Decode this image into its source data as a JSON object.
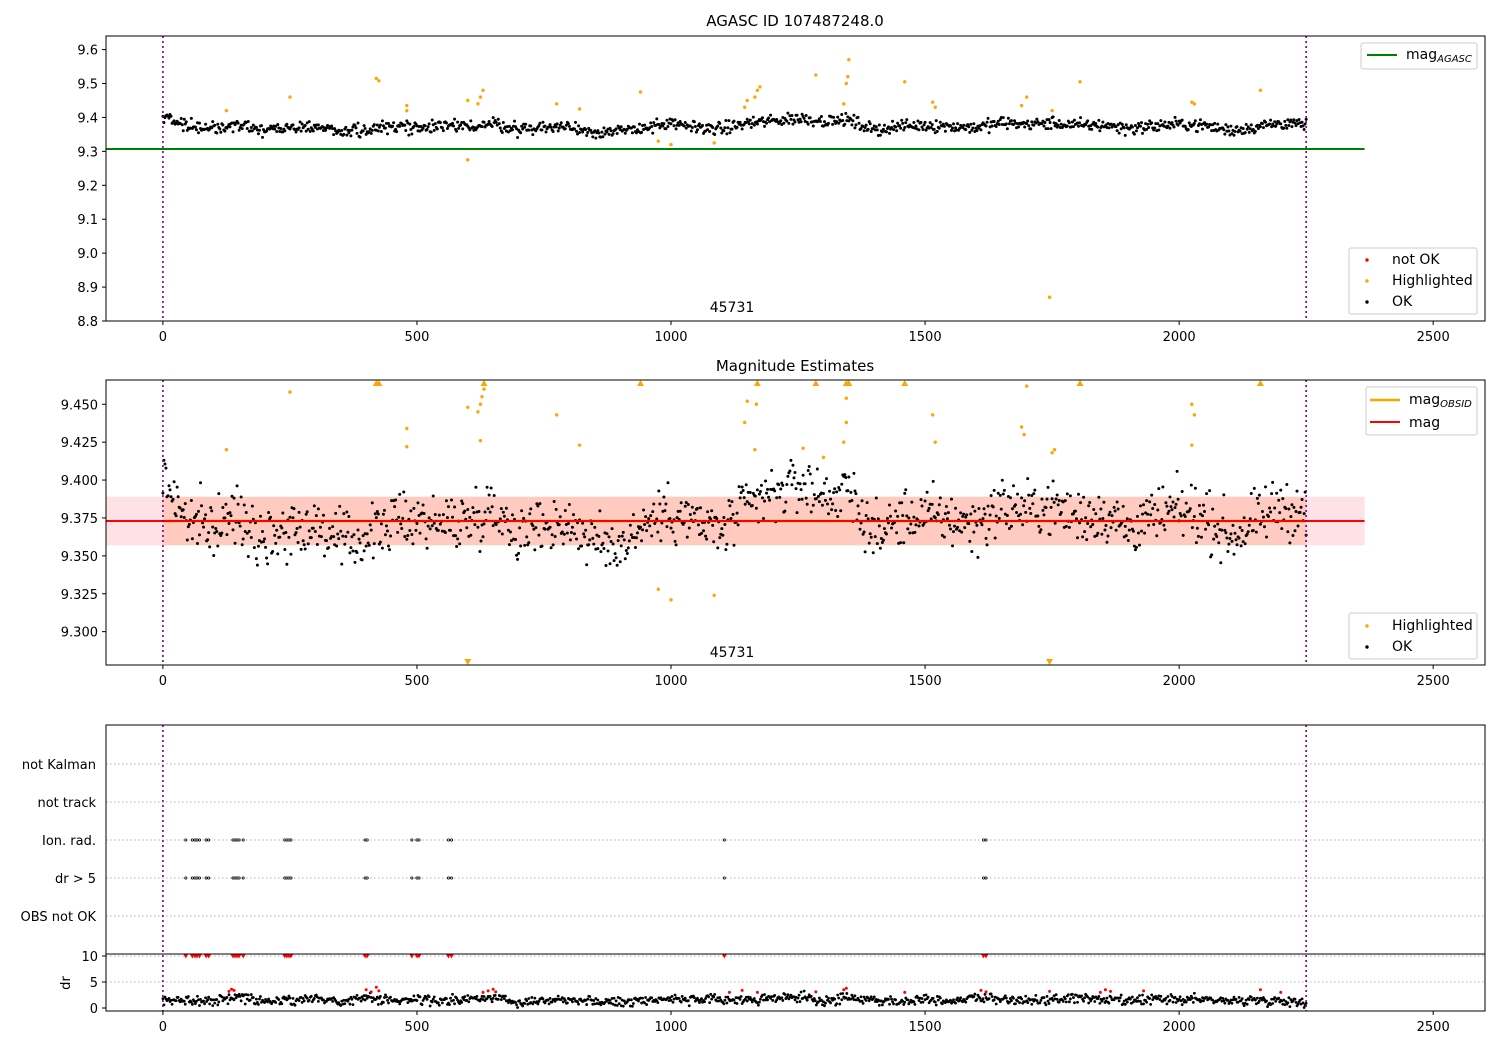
{
  "chart_data": [
    {
      "type": "scatter",
      "title": "AGASC ID 107487248.0",
      "xlim": [
        -112,
        2602
      ],
      "ylim": [
        8.8,
        9.64
      ],
      "xticks": [
        0,
        500,
        1000,
        1500,
        2000,
        2500
      ],
      "yticks": [
        "8.8",
        "8.9",
        "9.0",
        "9.1",
        "9.2",
        "9.3",
        "9.4",
        "9.5",
        "9.6"
      ],
      "annotation": {
        "text": "45731",
        "x": 1125,
        "y": 8.83
      },
      "vlines": [
        0,
        2250
      ],
      "lines": [
        {
          "name": "mag",
          "sub": "AGASC",
          "y": 9.307,
          "x": [
            -112,
            2365
          ],
          "color": "#008000"
        }
      ],
      "legend_points": [
        {
          "name": "not OK",
          "color": "#ff0000"
        },
        {
          "name": "Highlighted",
          "color": "#ffa500"
        },
        {
          "name": "OK",
          "color": "#000000"
        }
      ],
      "ok_series": {
        "name": "OK",
        "x": [
          0,
          50,
          100,
          150,
          200,
          250,
          300,
          350,
          400,
          450,
          500,
          550,
          600,
          650,
          700,
          750,
          800,
          850,
          900,
          950,
          1000,
          1050,
          1100,
          1150,
          1200,
          1250,
          1300,
          1350,
          1400,
          1450,
          1500,
          1550,
          1600,
          1650,
          1700,
          1750,
          1800,
          1850,
          1900,
          1950,
          2000,
          2050,
          2100,
          2150,
          2200,
          2250
        ],
        "y": [
          9.403,
          9.372,
          9.368,
          9.378,
          9.362,
          9.368,
          9.37,
          9.358,
          9.362,
          9.372,
          9.375,
          9.371,
          9.374,
          9.382,
          9.365,
          9.371,
          9.372,
          9.358,
          9.357,
          9.372,
          9.379,
          9.372,
          9.366,
          9.383,
          9.39,
          9.398,
          9.39,
          9.392,
          9.363,
          9.374,
          9.377,
          9.374,
          9.37,
          9.384,
          9.38,
          9.383,
          9.376,
          9.378,
          9.368,
          9.375,
          9.38,
          9.376,
          9.362,
          9.372,
          9.384,
          9.376
        ]
      },
      "highlighted_points": [
        [
          125,
          9.42
        ],
        [
          250,
          9.46
        ],
        [
          420,
          9.515
        ],
        [
          425,
          9.508
        ],
        [
          480,
          9.435
        ],
        [
          480,
          9.42
        ],
        [
          600,
          9.45
        ],
        [
          600,
          9.275
        ],
        [
          620,
          9.44
        ],
        [
          625,
          9.46
        ],
        [
          630,
          9.48
        ],
        [
          775,
          9.44
        ],
        [
          820,
          9.425
        ],
        [
          940,
          9.475
        ],
        [
          975,
          9.33
        ],
        [
          1000,
          9.32
        ],
        [
          1085,
          9.325
        ],
        [
          1145,
          9.43
        ],
        [
          1150,
          9.45
        ],
        [
          1165,
          9.46
        ],
        [
          1170,
          9.48
        ],
        [
          1175,
          9.49
        ],
        [
          1285,
          9.525
        ],
        [
          1340,
          9.44
        ],
        [
          1345,
          9.5
        ],
        [
          1348,
          9.52
        ],
        [
          1350,
          9.57
        ],
        [
          1460,
          9.505
        ],
        [
          1515,
          9.445
        ],
        [
          1520,
          9.43
        ],
        [
          1690,
          9.435
        ],
        [
          1700,
          9.46
        ],
        [
          1745,
          8.87
        ],
        [
          1750,
          9.42
        ],
        [
          1805,
          9.505
        ],
        [
          2025,
          9.445
        ],
        [
          2030,
          9.44
        ],
        [
          2160,
          9.48
        ]
      ]
    },
    {
      "type": "scatter",
      "title": "Magnitude Estimates",
      "xlim": [
        -112,
        2602
      ],
      "ylim": [
        9.278,
        9.466
      ],
      "xticks": [
        0,
        500,
        1000,
        1500,
        2000,
        2500
      ],
      "yticks": [
        "9.300",
        "9.325",
        "9.350",
        "9.375",
        "9.400",
        "9.425",
        "9.450"
      ],
      "annotation": {
        "text": "45731",
        "x": 1125,
        "y": 9.284
      },
      "vlines": [
        0,
        2250
      ],
      "lines": [
        {
          "name": "mag",
          "sub": "OBSID",
          "color": "#ffa500",
          "x": [
            0,
            2250
          ],
          "y": [
            9.373,
            9.373
          ]
        },
        {
          "name": "mag",
          "color": "#ff0000",
          "x": [
            -112,
            2365
          ],
          "y": [
            9.373,
            9.373
          ]
        }
      ],
      "bands": [
        {
          "x": [
            -112,
            2365
          ],
          "y": [
            9.357,
            9.389
          ],
          "color": "#ffb6c1"
        },
        {
          "x": [
            0,
            2250
          ],
          "y": [
            9.357,
            9.389
          ],
          "color": "#ffa07a"
        }
      ],
      "legend_points": [
        {
          "name": "Highlighted",
          "color": "#ffa500"
        },
        {
          "name": "OK",
          "color": "#000000"
        }
      ],
      "ok_series": {
        "name": "OK",
        "x": [
          0,
          50,
          100,
          150,
          200,
          250,
          300,
          350,
          400,
          450,
          500,
          550,
          600,
          650,
          700,
          750,
          800,
          850,
          900,
          950,
          1000,
          1050,
          1100,
          1150,
          1200,
          1250,
          1300,
          1350,
          1400,
          1450,
          1500,
          1550,
          1600,
          1650,
          1700,
          1750,
          1800,
          1850,
          1900,
          1950,
          2000,
          2050,
          2100,
          2150,
          2200,
          2250
        ],
        "y": [
          9.403,
          9.372,
          9.368,
          9.378,
          9.362,
          9.368,
          9.37,
          9.358,
          9.362,
          9.372,
          9.375,
          9.371,
          9.374,
          9.382,
          9.365,
          9.371,
          9.372,
          9.358,
          9.357,
          9.372,
          9.379,
          9.372,
          9.366,
          9.383,
          9.39,
          9.398,
          9.39,
          9.392,
          9.363,
          9.374,
          9.377,
          9.374,
          9.37,
          9.384,
          9.38,
          9.383,
          9.376,
          9.378,
          9.368,
          9.375,
          9.38,
          9.376,
          9.362,
          9.372,
          9.384,
          9.376
        ]
      },
      "highlighted_points": [
        [
          125,
          9.42
        ],
        [
          250,
          9.458
        ],
        [
          480,
          9.434
        ],
        [
          480,
          9.422
        ],
        [
          600,
          9.448
        ],
        [
          620,
          9.445
        ],
        [
          625,
          9.45
        ],
        [
          628,
          9.455
        ],
        [
          632,
          9.46
        ],
        [
          625,
          9.426
        ],
        [
          775,
          9.443
        ],
        [
          820,
          9.423
        ],
        [
          975,
          9.328
        ],
        [
          1000,
          9.321
        ],
        [
          1085,
          9.324
        ],
        [
          1145,
          9.438
        ],
        [
          1150,
          9.452
        ],
        [
          1165,
          9.42
        ],
        [
          1168,
          9.45
        ],
        [
          1260,
          9.421
        ],
        [
          1300,
          9.415
        ],
        [
          1340,
          9.425
        ],
        [
          1345,
          9.438
        ],
        [
          1345,
          9.454
        ],
        [
          1515,
          9.443
        ],
        [
          1520,
          9.425
        ],
        [
          1690,
          9.435
        ],
        [
          1695,
          9.43
        ],
        [
          1700,
          9.462
        ],
        [
          1750,
          9.418
        ],
        [
          1755,
          9.42
        ],
        [
          2025,
          9.45
        ],
        [
          2030,
          9.443
        ],
        [
          2025,
          9.423
        ]
      ],
      "clipped_high_x": [
        420,
        425,
        632,
        940,
        1170,
        1285,
        1345,
        1350,
        1460,
        1805,
        2160
      ],
      "clipped_low_x": [
        600,
        1745
      ]
    },
    {
      "type": "scatter",
      "title": "",
      "xlim": [
        -112,
        2602
      ],
      "ylim": [
        0,
        11
      ],
      "xticks": [
        0,
        500,
        1000,
        1500,
        2000,
        2500
      ],
      "yticks": [
        "0",
        "5",
        "10"
      ],
      "ylabel": "dr",
      "vlines": [
        0,
        2250
      ],
      "flag_labels": [
        "not Kalman",
        "not track",
        "Ion. rad.",
        "dr > 5",
        "OBS not OK"
      ],
      "flag_x": {
        "Ion. rad.": [
          45,
          58,
          63,
          67,
          72,
          85,
          90,
          138,
          142,
          146,
          150,
          158,
          240,
          244,
          248,
          252,
          398,
          402,
          490,
          500,
          504,
          562,
          568,
          1105,
          1615,
          1620
        ],
        "dr > 5": [
          45,
          58,
          63,
          67,
          72,
          85,
          90,
          138,
          142,
          146,
          150,
          158,
          240,
          244,
          248,
          252,
          398,
          402,
          490,
          500,
          504,
          562,
          568,
          1105,
          1615,
          1620
        ]
      },
      "dr_series": {
        "name": "dr",
        "x": [
          0,
          50,
          100,
          150,
          200,
          250,
          300,
          350,
          400,
          450,
          500,
          550,
          600,
          650,
          700,
          750,
          800,
          850,
          900,
          950,
          1000,
          1050,
          1100,
          1150,
          1200,
          1250,
          1300,
          1350,
          1400,
          1450,
          1500,
          1550,
          1600,
          1650,
          1700,
          1750,
          1800,
          1850,
          1900,
          1950,
          2000,
          2050,
          2100,
          2150,
          2200,
          2250
        ],
        "y": [
          1.2,
          1.6,
          1.4,
          2.2,
          1.3,
          1.5,
          1.9,
          1.2,
          2.0,
          1.4,
          1.7,
          1.3,
          1.6,
          2.1,
          1.2,
          1.5,
          1.8,
          1.3,
          1.1,
          1.6,
          1.9,
          1.4,
          1.7,
          1.5,
          1.8,
          2.1,
          1.3,
          1.9,
          1.6,
          1.2,
          1.8,
          1.4,
          2.0,
          1.7,
          1.3,
          1.5,
          2.0,
          1.6,
          1.2,
          1.7,
          1.5,
          1.8,
          1.3,
          1.6,
          1.4,
          1.2
        ]
      },
      "dr_high_points": [
        [
          130,
          3.2
        ],
        [
          135,
          3.6
        ],
        [
          140,
          3.4
        ],
        [
          400,
          3.5
        ],
        [
          410,
          3.1
        ],
        [
          420,
          4.0
        ],
        [
          425,
          3.3
        ],
        [
          630,
          3.0
        ],
        [
          640,
          3.3
        ],
        [
          650,
          3.6
        ],
        [
          655,
          3.1
        ],
        [
          1115,
          3.0
        ],
        [
          1140,
          3.4
        ],
        [
          1170,
          3.0
        ],
        [
          1285,
          3.1
        ],
        [
          1340,
          3.5
        ],
        [
          1345,
          3.8
        ],
        [
          1460,
          3.0
        ],
        [
          1610,
          3.4
        ],
        [
          1620,
          3.1
        ],
        [
          1745,
          3.2
        ],
        [
          1845,
          3.0
        ],
        [
          1855,
          3.5
        ],
        [
          1865,
          3.2
        ],
        [
          1930,
          3.3
        ],
        [
          2160,
          3.5
        ],
        [
          2200,
          3.0
        ]
      ],
      "dr_clipped_x": [
        45,
        58,
        63,
        67,
        72,
        85,
        90,
        138,
        142,
        146,
        150,
        158,
        240,
        244,
        248,
        252,
        398,
        402,
        490,
        500,
        504,
        562,
        568,
        1105,
        1615,
        1620
      ]
    }
  ]
}
